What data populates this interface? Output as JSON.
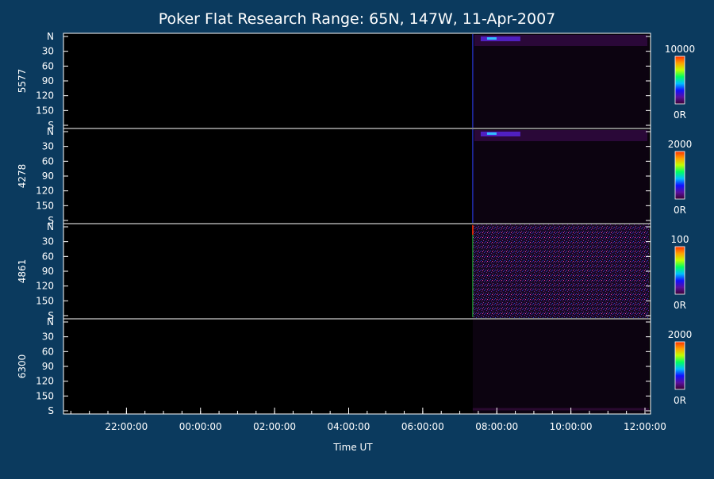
{
  "chart_data": {
    "type": "heatmap",
    "title": "Poker Flat Research Range: 65N, 147W, 11-Apr-2007",
    "xlabel": "Time UT",
    "x_tick_labels": [
      "22:00:00",
      "00:00:00",
      "02:00:00",
      "04:00:00",
      "06:00:00",
      "08:00:00",
      "10:00:00",
      "12:00:00"
    ],
    "x_ticks_hours": [
      22,
      24,
      26,
      28,
      30,
      32,
      34,
      36
    ],
    "x_range_hours": [
      20.3,
      36.15
    ],
    "data_start_hours": 31.35,
    "y_tick_labels": [
      "N",
      "30",
      "60",
      "90",
      "120",
      "150",
      "S"
    ],
    "y_tick_values": [
      0,
      30,
      60,
      90,
      120,
      150,
      180
    ],
    "y_range": [
      0,
      180
    ],
    "panels": [
      {
        "name": "5577",
        "scale_max": "10000",
        "scale_min": "0R",
        "bright_band": true,
        "noisy": false
      },
      {
        "name": "4278",
        "scale_max": "2000",
        "scale_min": "0R",
        "bright_band": true,
        "noisy": false
      },
      {
        "name": "4861",
        "scale_max": "100",
        "scale_min": "0R",
        "bright_band": false,
        "noisy": true
      },
      {
        "name": "6300",
        "scale_max": "2000",
        "scale_min": "0R",
        "bright_band": false,
        "noisy": false
      }
    ],
    "colorbar_colors": [
      "#3a0030",
      "#5a10a0",
      "#1010ff",
      "#00c0ff",
      "#00ff60",
      "#c0ff00",
      "#ffa000",
      "#ff3000"
    ]
  }
}
